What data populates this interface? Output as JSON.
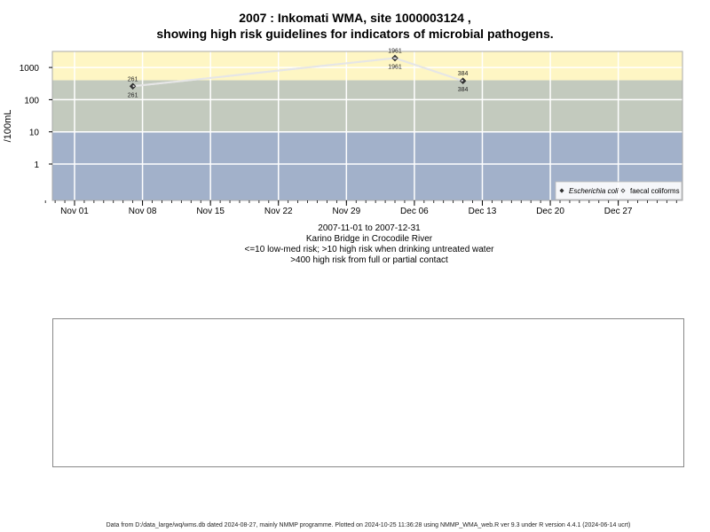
{
  "chart_data": {
    "type": "scatter",
    "title": "2007 : Inkomati WMA, site 1000003124 ,",
    "subtitle": "showing high risk guidelines for indicators of microbial pathogens.",
    "ylabel": "/100mL",
    "y_scale": "log",
    "y_ticks": [
      "1",
      "10",
      "100",
      "1000"
    ],
    "x_ticks": [
      "Nov 01",
      "Nov 08",
      "Nov 15",
      "Nov 22",
      "Nov 29",
      "Dec 06",
      "Dec 13",
      "Dec 20",
      "Dec 27"
    ],
    "xlim": [
      "2007-10-29",
      "2008-01-03"
    ],
    "grid": true,
    "risk_bands": [
      {
        "from": 400,
        "color": "#fef6c4"
      },
      {
        "from": 10,
        "to": 400,
        "color": "#c3cabe"
      },
      {
        "to": 10,
        "color": "#a2b1ca"
      }
    ],
    "series": [
      {
        "name": "Escherichia coli",
        "marker": "filled-diamond",
        "color": "#333333",
        "points": [
          {
            "x": "2007-11-07",
            "y": 261,
            "label": "261"
          },
          {
            "x": "2007-12-04",
            "y": 1961,
            "label": "1961"
          },
          {
            "x": "2007-12-11",
            "y": 384,
            "label": "384"
          }
        ]
      },
      {
        "name": "faecal coliforms",
        "marker": "open-diamond",
        "color": "#333333",
        "points": [
          {
            "x": "2007-11-07",
            "y": 261,
            "label": "261"
          },
          {
            "x": "2007-12-04",
            "y": 1961,
            "label": "1961"
          },
          {
            "x": "2007-12-11",
            "y": 384,
            "label": "384"
          }
        ]
      }
    ],
    "legend_position": "bottom-right"
  },
  "info_lines": [
    "2007-11-01 to 2007-12-31",
    "Karino Bridge in Crocodile River",
    "<=10 low-med risk; >10 high risk when drinking untreated water",
    ">400 high risk from full or partial contact"
  ],
  "footer": "Data from D:/data_large/wq/wms.db dated 2024-08-27, mainly NMMP programme. Plotted on 2024-10-25 11:36:28 using NMMP_WMA_web.R ver 9.3 under R version 4.4.1 (2024-06-14 ucrt)"
}
